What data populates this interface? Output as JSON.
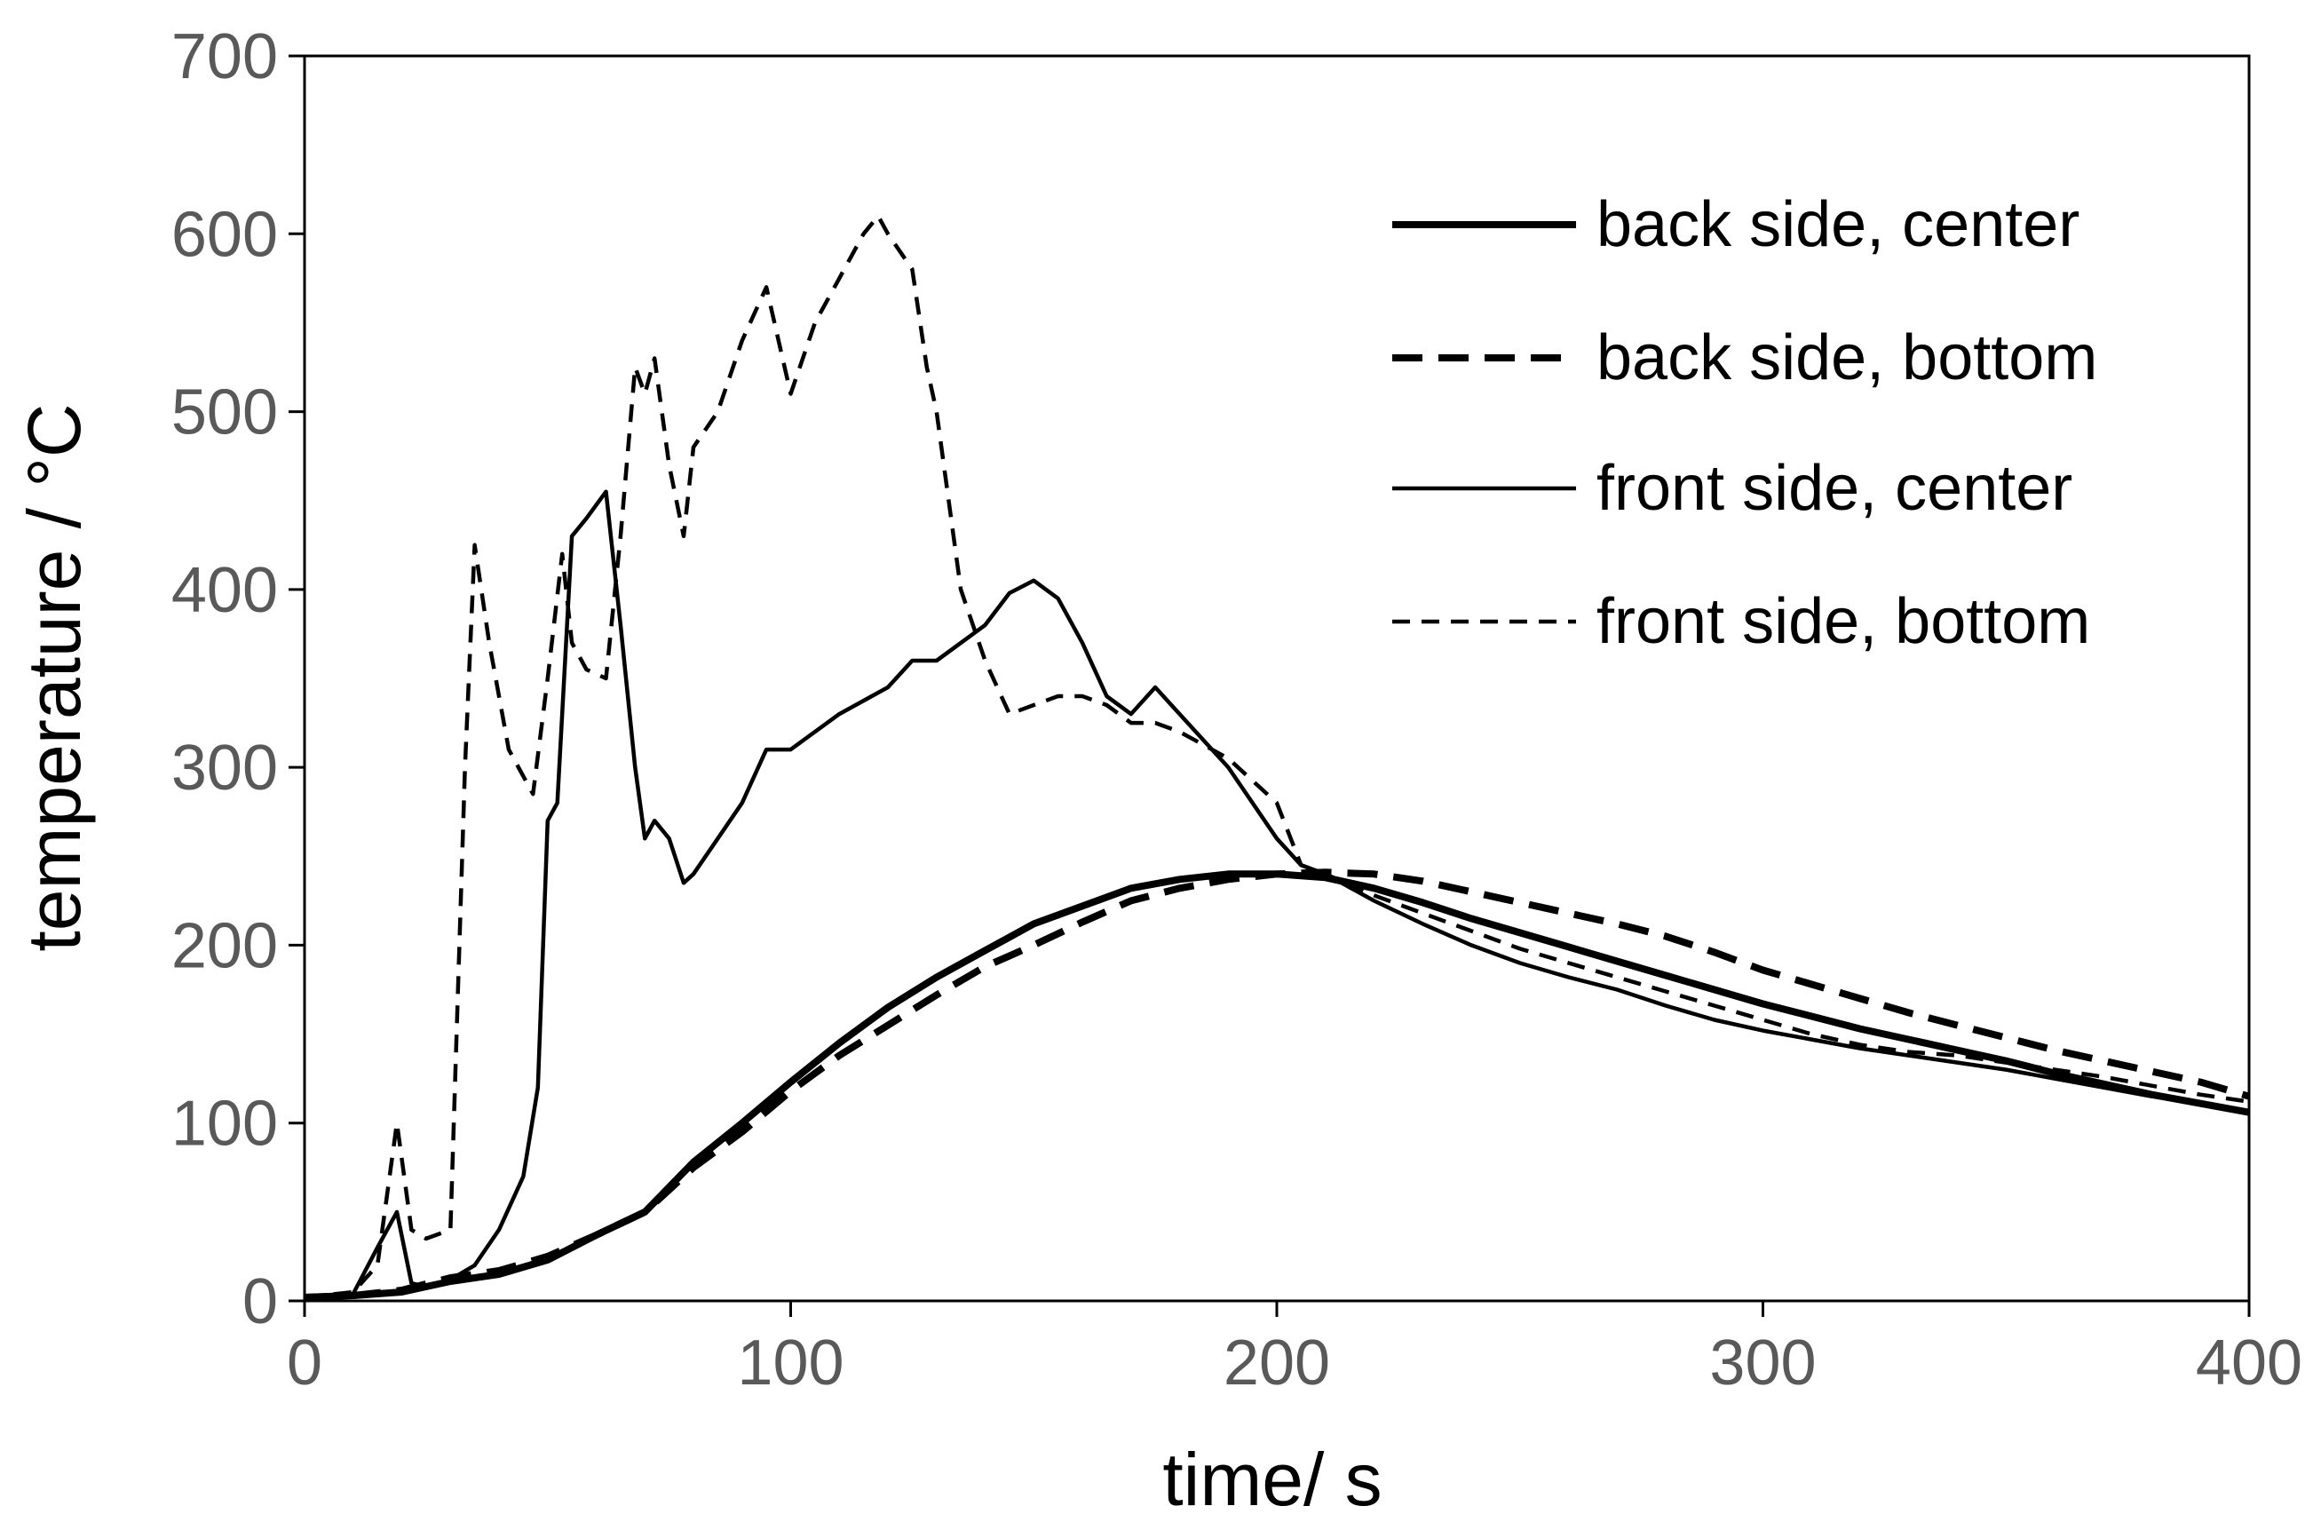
{
  "chart_data": {
    "type": "line",
    "title": "",
    "xlabel": "time/ s",
    "ylabel": "temperature / °C",
    "xlim": [
      0,
      400
    ],
    "ylim": [
      0,
      700
    ],
    "x_ticks": [
      "0",
      "100",
      "200",
      "300",
      "400"
    ],
    "y_ticks": [
      "0",
      "100",
      "200",
      "300",
      "400",
      "500",
      "600",
      "700"
    ],
    "grid": false,
    "legend_position": "top-right",
    "series": [
      {
        "name": "back side, center",
        "style": "thick-solid",
        "color": "#000000",
        "x": [
          0,
          10,
          20,
          30,
          40,
          50,
          60,
          70,
          80,
          90,
          100,
          110,
          120,
          130,
          140,
          150,
          160,
          170,
          180,
          190,
          200,
          210,
          220,
          230,
          240,
          250,
          260,
          270,
          280,
          290,
          300,
          310,
          320,
          330,
          340,
          350,
          360,
          370,
          380,
          390,
          400
        ],
        "y": [
          2,
          3,
          5,
          11,
          15,
          23,
          37,
          50,
          78,
          100,
          123,
          145,
          165,
          182,
          197,
          212,
          222,
          232,
          237,
          240,
          240,
          238,
          232,
          224,
          215,
          207,
          199,
          191,
          183,
          175,
          167,
          160,
          153,
          147,
          141,
          135,
          128,
          122,
          116,
          111,
          106
        ]
      },
      {
        "name": "back side, bottom",
        "style": "thick-dashed",
        "color": "#000000",
        "x": [
          0,
          10,
          20,
          30,
          40,
          50,
          60,
          70,
          80,
          90,
          100,
          110,
          120,
          130,
          140,
          150,
          160,
          170,
          180,
          190,
          200,
          210,
          220,
          230,
          240,
          250,
          260,
          270,
          280,
          290,
          300,
          310,
          320,
          330,
          340,
          350,
          360,
          370,
          380,
          390,
          400
        ],
        "y": [
          2,
          3,
          6,
          13,
          17,
          25,
          37,
          50,
          75,
          95,
          118,
          138,
          155,
          172,
          188,
          200,
          213,
          225,
          232,
          237,
          240,
          241,
          240,
          236,
          230,
          224,
          218,
          212,
          205,
          196,
          186,
          178,
          170,
          162,
          155,
          148,
          141,
          135,
          129,
          123,
          115
        ]
      },
      {
        "name": "front side, center",
        "style": "thin-solid",
        "color": "#000000",
        "x": [
          0,
          10,
          15,
          19,
          22,
          25,
          30,
          35,
          40,
          45,
          48,
          50,
          52,
          55,
          58,
          62,
          65,
          68,
          70,
          72,
          75,
          78,
          80,
          85,
          90,
          95,
          100,
          110,
          120,
          125,
          130,
          140,
          145,
          150,
          155,
          160,
          165,
          170,
          175,
          180,
          190,
          200,
          205,
          210,
          220,
          230,
          240,
          250,
          260,
          270,
          280,
          290,
          300,
          310,
          320,
          330,
          340,
          350,
          360,
          370,
          380,
          390,
          400
        ],
        "y": [
          2,
          4,
          30,
          50,
          10,
          8,
          12,
          20,
          40,
          70,
          120,
          270,
          280,
          430,
          440,
          455,
          380,
          300,
          260,
          270,
          260,
          235,
          240,
          260,
          280,
          310,
          310,
          330,
          345,
          360,
          360,
          380,
          398,
          405,
          395,
          370,
          340,
          330,
          345,
          330,
          300,
          260,
          245,
          240,
          225,
          212,
          200,
          190,
          182,
          175,
          166,
          158,
          152,
          147,
          142,
          138,
          134,
          130,
          125,
          120,
          115,
          111,
          106
        ]
      },
      {
        "name": "front side, bottom",
        "style": "thin-dashed",
        "color": "#000000",
        "x": [
          0,
          10,
          15,
          19,
          22,
          25,
          30,
          33,
          35,
          38,
          42,
          47,
          50,
          53,
          55,
          58,
          62,
          65,
          68,
          70,
          72,
          75,
          78,
          80,
          85,
          90,
          95,
          100,
          105,
          110,
          115,
          118,
          120,
          125,
          128,
          130,
          135,
          140,
          145,
          150,
          155,
          160,
          165,
          170,
          175,
          180,
          190,
          200,
          205,
          210,
          220,
          230,
          240,
          250,
          260,
          270,
          280,
          290,
          300,
          310,
          320,
          330,
          340,
          350,
          360,
          370,
          380,
          390,
          400
        ],
        "y": [
          2,
          5,
          20,
          100,
          40,
          35,
          40,
          300,
          425,
          370,
          310,
          285,
          350,
          420,
          370,
          355,
          350,
          430,
          525,
          510,
          530,
          470,
          430,
          480,
          500,
          540,
          570,
          510,
          550,
          575,
          600,
          610,
          600,
          580,
          525,
          500,
          400,
          360,
          330,
          335,
          340,
          340,
          335,
          325,
          325,
          320,
          305,
          280,
          245,
          240,
          228,
          218,
          208,
          198,
          190,
          182,
          174,
          166,
          158,
          150,
          144,
          140,
          138,
          134,
          130,
          126,
          121,
          116,
          112
        ]
      }
    ]
  }
}
